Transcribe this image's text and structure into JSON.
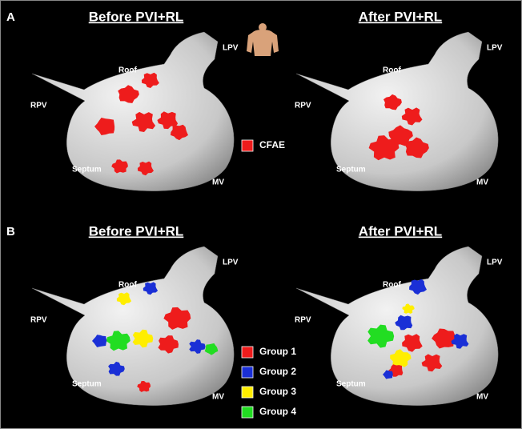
{
  "panels": [
    {
      "label": "A",
      "maps": [
        {
          "title": "Before PVI+RL",
          "labels": {
            "lpv": "LPV",
            "roof": "Roof",
            "rpv": "RPV",
            "septum": "Septum",
            "mv": "MV"
          }
        },
        {
          "title": "After PVI+RL",
          "labels": {
            "lpv": "LPV",
            "roof": "Roof",
            "rpv": "RPV",
            "septum": "Septum",
            "mv": "MV"
          }
        }
      ],
      "legend": [
        {
          "name": "CFAE",
          "color": "#ee1c1c"
        }
      ]
    },
    {
      "label": "B",
      "maps": [
        {
          "title": "Before PVI+RL",
          "labels": {
            "lpv": "LPV",
            "roof": "Roof",
            "rpv": "RPV",
            "septum": "Septum",
            "mv": "MV"
          }
        },
        {
          "title": "After PVI+RL",
          "labels": {
            "lpv": "LPV",
            "roof": "Roof",
            "rpv": "RPV",
            "septum": "Septum",
            "mv": "MV"
          }
        }
      ],
      "legend": [
        {
          "name": "Group 1",
          "color": "#ee1c1c"
        },
        {
          "name": "Group 2",
          "color": "#1a2fd6"
        },
        {
          "name": "Group 3",
          "color": "#ffee00"
        },
        {
          "name": "Group 4",
          "color": "#22dd22"
        }
      ]
    }
  ]
}
